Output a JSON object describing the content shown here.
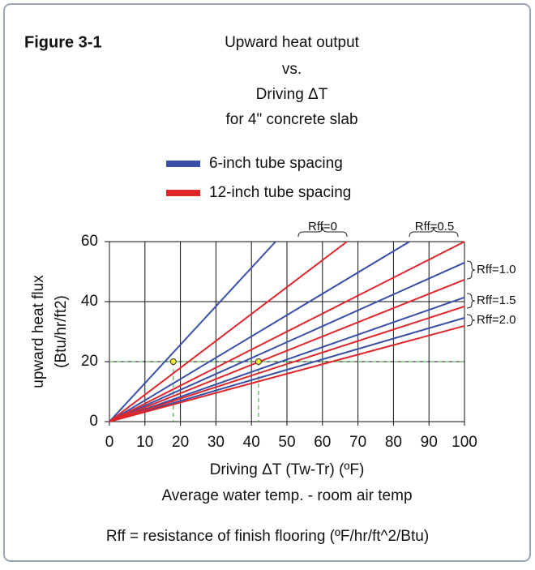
{
  "chart_data": {
    "type": "line",
    "figure_label": "Figure 3-1",
    "title": [
      "Upward heat output",
      "vs.",
      "Driving ΔT",
      "for 4\" concrete slab"
    ],
    "xlabel": [
      "Driving ΔT  (Tw-Tr) (ºF)",
      "Average water temp. - room air temp"
    ],
    "ylabel": [
      "upward heat flux",
      "(Btu/hr/ft2)"
    ],
    "footnote": "Rff = resistance of finish flooring (ºF/hr/ft^2/Btu)",
    "xlim": [
      0,
      100
    ],
    "xticks": [
      0,
      10,
      20,
      30,
      40,
      50,
      60,
      70,
      80,
      90,
      100
    ],
    "ylim": [
      0,
      60
    ],
    "yticks": [
      0,
      20,
      40,
      60
    ],
    "grid": true,
    "series": [
      {
        "name": "6-inch tube spacing",
        "color": "#3a4fa8",
        "lines": [
          {
            "x": [
              0,
              46.8
            ],
            "values": [
              0,
              60
            ]
          },
          {
            "x": [
              0,
              84.5
            ],
            "values": [
              0,
              60
            ]
          },
          {
            "x": [
              0,
              100
            ],
            "values": [
              0,
              53
            ]
          },
          {
            "x": [
              0,
              100
            ],
            "values": [
              0,
              41.4
            ]
          },
          {
            "x": [
              0,
              100
            ],
            "values": [
              0,
              34.6
            ]
          }
        ]
      },
      {
        "name": "12-inch tube spacing",
        "color": "#e0262b",
        "lines": [
          {
            "x": [
              0,
              66.9
            ],
            "values": [
              0,
              60
            ]
          },
          {
            "x": [
              0,
              100
            ],
            "values": [
              0,
              60
            ]
          },
          {
            "x": [
              0,
              100
            ],
            "values": [
              0,
              47.3
            ]
          },
          {
            "x": [
              0,
              100
            ],
            "values": [
              0,
              38.4
            ]
          },
          {
            "x": [
              0,
              100
            ],
            "values": [
              0,
              31.9
            ]
          }
        ]
      }
    ],
    "annotations": [
      "Rff=0",
      "Rff=0.5",
      "Rff=1.0",
      "Rff=1.5",
      "Rff=2.0"
    ],
    "markers": [
      {
        "x": 18,
        "y": 20
      },
      {
        "x": 42,
        "y": 20
      }
    ]
  }
}
